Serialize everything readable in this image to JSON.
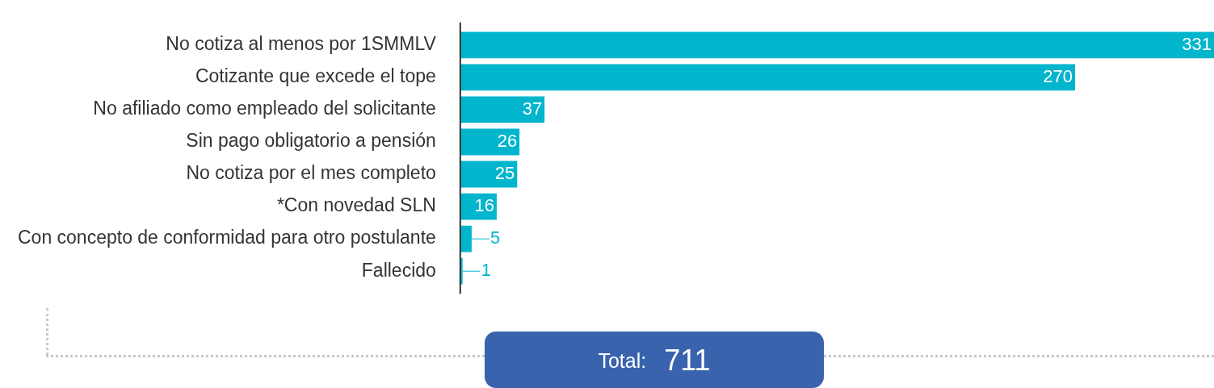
{
  "chart_data": {
    "type": "bar",
    "orientation": "horizontal",
    "categories": [
      "No cotiza al menos por 1SMMLV",
      "Cotizante que excede el tope",
      "No afiliado como empleado del solicitante",
      "Sin pago obligatorio a pensión",
      "No cotiza por el mes completo",
      "*Con novedad SLN",
      "Con concepto de conformidad para otro postulante",
      "Fallecido"
    ],
    "values": [
      331,
      270,
      37,
      26,
      25,
      16,
      5,
      1
    ],
    "color": "#00b5cc",
    "data_labels": true,
    "tick_labels": "y",
    "annotations": [
      "Total:",
      "711"
    ]
  }
}
